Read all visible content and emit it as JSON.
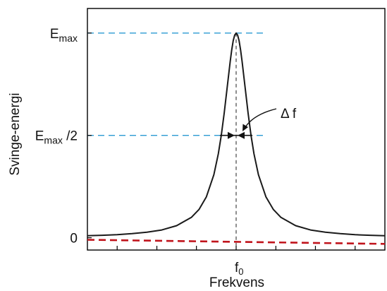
{
  "chart_data": {
    "type": "line",
    "xlabel": "Frekvens",
    "ylabel": "Svinge-energi",
    "x_tick_label": "f",
    "x_tick_subscript": "0",
    "y_ticks": [
      {
        "main": "E",
        "sub": "max",
        "suffix": "",
        "value": 1.0
      },
      {
        "main": "E",
        "sub": "max",
        "suffix": " /2",
        "value": 0.5
      },
      {
        "main": "0",
        "sub": "",
        "suffix": "",
        "value": 0.0
      }
    ],
    "annotation": "Δ f",
    "xlim": [
      -1.0,
      1.0
    ],
    "ylim": [
      -0.06,
      1.12
    ],
    "f0": 0.0,
    "emax": 1.0,
    "series": [
      {
        "line_style": "solid",
        "color": "#1a1a1a",
        "x": [
          -1.0,
          -0.9,
          -0.8,
          -0.7,
          -0.6,
          -0.5,
          -0.4,
          -0.3,
          -0.25,
          -0.2,
          -0.15,
          -0.12,
          -0.1,
          -0.08,
          -0.06,
          -0.04,
          -0.03,
          -0.02,
          -0.01,
          0.0,
          0.01,
          0.02,
          0.03,
          0.04,
          0.06,
          0.08,
          0.1,
          0.12,
          0.15,
          0.2,
          0.25,
          0.3,
          0.4,
          0.5,
          0.6,
          0.7,
          0.8,
          0.9,
          1.0
        ],
        "y": [
          0.01,
          0.012,
          0.015,
          0.02,
          0.027,
          0.038,
          0.059,
          0.1,
          0.138,
          0.2,
          0.308,
          0.41,
          0.5,
          0.61,
          0.735,
          0.862,
          0.917,
          0.962,
          0.99,
          1.0,
          0.99,
          0.962,
          0.917,
          0.862,
          0.735,
          0.61,
          0.5,
          0.41,
          0.308,
          0.2,
          0.138,
          0.1,
          0.059,
          0.038,
          0.027,
          0.02,
          0.015,
          0.012,
          0.01
        ]
      },
      {
        "line_style": "dashed",
        "color": "#c0141c",
        "x": [
          -1.0,
          1.0
        ],
        "y": [
          -0.01,
          -0.03
        ]
      }
    ],
    "reference_lines": [
      {
        "orientation": "horizontal",
        "value": 1.0,
        "color": "#2b9ad3",
        "style": "dashed"
      },
      {
        "orientation": "horizontal",
        "value": 0.5,
        "color": "#2b9ad3",
        "style": "dashed"
      },
      {
        "orientation": "vertical",
        "value": 0.0,
        "color": "#333333",
        "style": "dashed"
      }
    ],
    "grid": false
  }
}
